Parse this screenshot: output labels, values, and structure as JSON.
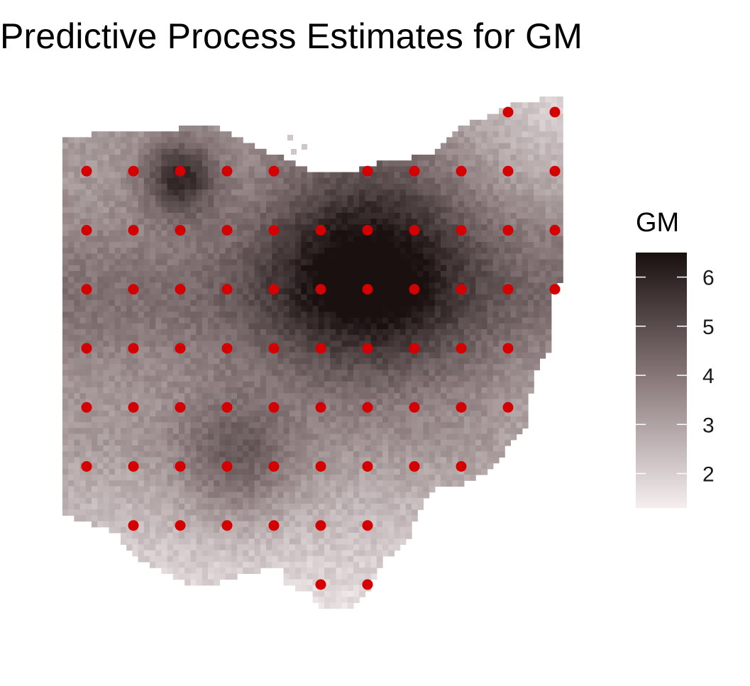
{
  "chart_data": {
    "type": "heatmap",
    "title": "Predictive Process Estimates for GM",
    "xlabel": "",
    "ylabel": "",
    "grid": false,
    "legend": {
      "title": "GM",
      "placement": "right",
      "range": [
        1.3,
        6.5
      ],
      "ticks": [
        "2",
        "3",
        "4",
        "5",
        "6"
      ],
      "tick_values": [
        2,
        3,
        4,
        5,
        6
      ],
      "color_low": "#f5eeef",
      "color_high": "#1a1010"
    },
    "surface": {
      "description_units": "grid index (columns 0-10 west to east, rows 0-7 north to south)",
      "hotspots": [
        {
          "col": 6.0,
          "row": 2.6,
          "value": 6.4,
          "spread": 1.6
        },
        {
          "col": 2.0,
          "row": 1.1,
          "value": 5.8,
          "spread": 0.55
        },
        {
          "col": 3.2,
          "row": 5.9,
          "value": 4.8,
          "spread": 0.9
        }
      ],
      "base_value": 3.2
    },
    "knots": {
      "color": "#d40000",
      "rows": [
        {
          "row": 0,
          "cols": [
            9,
            10
          ]
        },
        {
          "row": 1,
          "cols": [
            0,
            1,
            2,
            3,
            4,
            6,
            7,
            8,
            9,
            10
          ]
        },
        {
          "row": 2,
          "cols": [
            0,
            1,
            2,
            3,
            4,
            5,
            6,
            7,
            8,
            9,
            10
          ]
        },
        {
          "row": 3,
          "cols": [
            0,
            1,
            2,
            3,
            4,
            5,
            6,
            7,
            8,
            9,
            10
          ]
        },
        {
          "row": 4,
          "cols": [
            0,
            1,
            2,
            3,
            4,
            5,
            6,
            7,
            8,
            9
          ]
        },
        {
          "row": 5,
          "cols": [
            0,
            1,
            2,
            3,
            4,
            5,
            6,
            7,
            8,
            9
          ]
        },
        {
          "row": 6,
          "cols": [
            0,
            1,
            2,
            3,
            4,
            5,
            6,
            7,
            8
          ]
        },
        {
          "row": 7,
          "cols": [
            1,
            2,
            3,
            4,
            5,
            6
          ]
        },
        {
          "row": 8,
          "cols": [
            5,
            6
          ]
        }
      ]
    }
  }
}
